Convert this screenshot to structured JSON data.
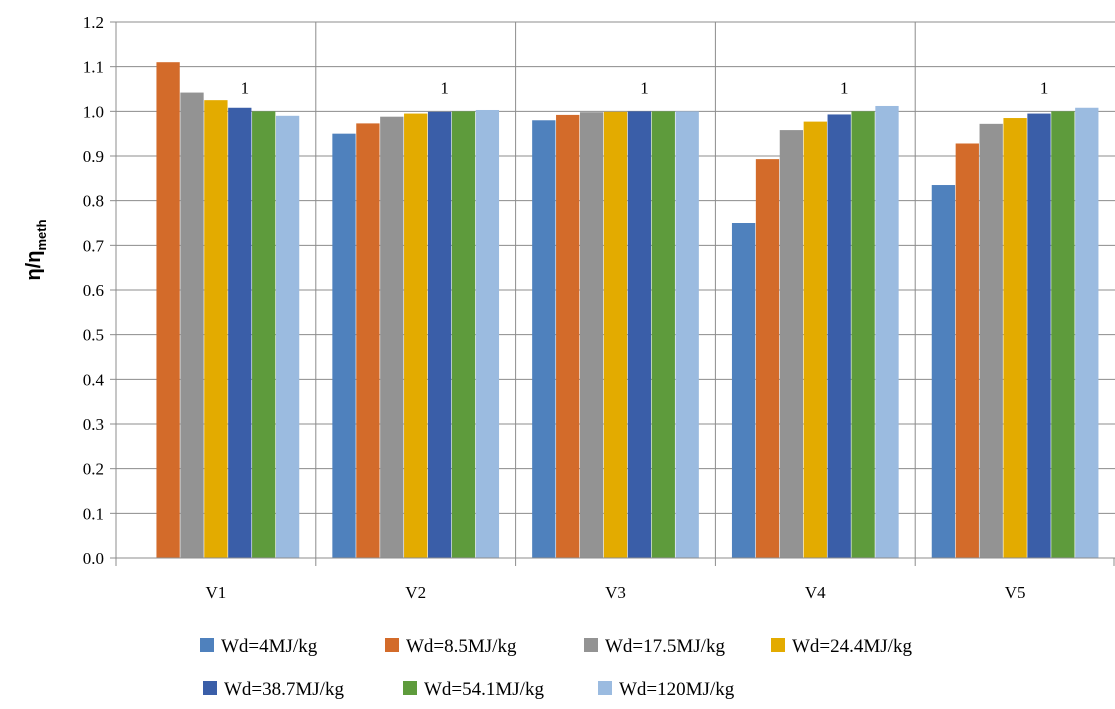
{
  "chart_data": {
    "type": "bar",
    "ylabel_main": "η/η",
    "ylabel_sub": "meth",
    "ylim": [
      0,
      1.2
    ],
    "yticks": [
      "0.0",
      "0.1",
      "0.2",
      "0.3",
      "0.4",
      "0.5",
      "0.6",
      "0.7",
      "0.8",
      "0.9",
      "1.0",
      "1.1",
      "1.2"
    ],
    "categories": [
      "V1",
      "V2",
      "V3",
      "V4",
      "V5"
    ],
    "grid": true,
    "legend_position": "bottom",
    "series": [
      {
        "name": "Wd=4MJ/kg",
        "color": "#4f81bd",
        "values": [
          null,
          0.95,
          0.98,
          0.75,
          0.835
        ]
      },
      {
        "name": "Wd=8.5MJ/kg",
        "color": "#d36b2a",
        "values": [
          1.11,
          0.973,
          0.992,
          0.893,
          0.928
        ]
      },
      {
        "name": "Wd=17.5MJ/kg",
        "color": "#939393",
        "values": [
          1.042,
          0.988,
          0.998,
          0.958,
          0.972
        ]
      },
      {
        "name": "Wd=24.4MJ/kg",
        "color": "#e3ab00",
        "values": [
          1.025,
          0.995,
          0.999,
          0.977,
          0.985
        ]
      },
      {
        "name": "Wd=38.7MJ/kg",
        "color": "#3a5ea8",
        "values": [
          1.008,
          0.999,
          1.0,
          0.993,
          0.995
        ]
      },
      {
        "name": "Wd=54.1MJ/kg",
        "color": "#5e9b3c",
        "values": [
          1.0,
          1.0,
          1.0,
          1.0,
          1.0
        ]
      },
      {
        "name": "Wd=120MJ/kg",
        "color": "#9bbbe0",
        "values": [
          0.99,
          1.003,
          1.0,
          1.012,
          1.008
        ]
      }
    ],
    "data_labels": {
      "series_index": 5,
      "values": [
        "1",
        "1",
        "1",
        "1",
        "1"
      ]
    }
  }
}
